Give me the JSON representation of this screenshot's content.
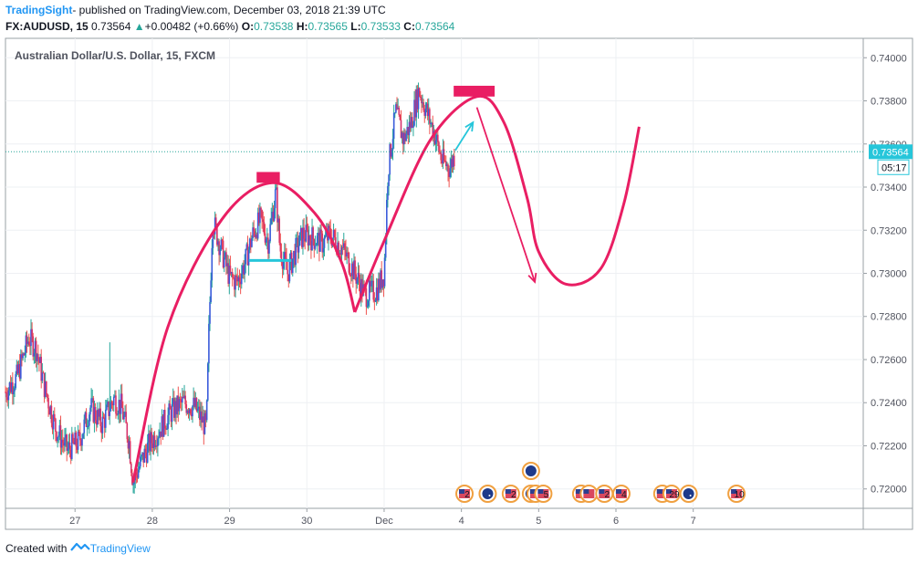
{
  "header": {
    "author": "TradingSight",
    "published": "- published on TradingView.com, December 03, 2018 21:39 UTC",
    "symbol": "FX:AUDUSD, 15",
    "last": "0.73564",
    "change": "+0.00482 (+0.66%)",
    "o_label": "O:",
    "o_value": "0.73538",
    "h_label": "H:",
    "h_value": "0.73565",
    "l_label": "L:",
    "l_value": "0.73533",
    "c_label": "C:",
    "c_value": "0.73564"
  },
  "footer": {
    "created_with": "Created with",
    "brand": "TradingView"
  },
  "chart_data": {
    "type": "line",
    "title": "Australian Dollar/U.S. Dollar, 15, FXCM",
    "x_tick_labels": [
      "27",
      "28",
      "29",
      "30",
      "Dec",
      "4",
      "5",
      "6",
      "7"
    ],
    "x_ticks_day": [
      27.0,
      28.0,
      29.0,
      30.0,
      31.0,
      32.0,
      33.0,
      34.0,
      35.0
    ],
    "y_ticks": [
      0.72,
      0.722,
      0.724,
      0.726,
      0.728,
      0.73,
      0.732,
      0.734,
      0.736,
      0.738,
      0.74
    ],
    "ylim": [
      0.7191,
      0.7409
    ],
    "xlim": [
      26.1,
      37.2
    ],
    "grid": true,
    "last_price": 0.73564,
    "last_price_label": "0.73564",
    "countdown_label": "05:17",
    "price_path": [
      [
        26.1,
        0.7245
      ],
      [
        26.25,
        0.7252
      ],
      [
        26.4,
        0.727
      ],
      [
        26.5,
        0.7265
      ],
      [
        26.6,
        0.7248
      ],
      [
        26.75,
        0.7228
      ],
      [
        26.9,
        0.7218
      ],
      [
        27.05,
        0.7222
      ],
      [
        27.2,
        0.7238
      ],
      [
        27.35,
        0.723
      ],
      [
        27.5,
        0.7242
      ],
      [
        27.6,
        0.7238
      ],
      [
        27.7,
        0.7222
      ],
      [
        27.75,
        0.7203
      ],
      [
        27.85,
        0.7212
      ],
      [
        27.95,
        0.722
      ],
      [
        28.1,
        0.7228
      ],
      [
        28.25,
        0.7236
      ],
      [
        28.4,
        0.724
      ],
      [
        28.55,
        0.7238
      ],
      [
        28.7,
        0.7228
      ],
      [
        28.73,
        0.727
      ],
      [
        28.78,
        0.7325
      ],
      [
        28.9,
        0.731
      ],
      [
        29.0,
        0.7298
      ],
      [
        29.1,
        0.7296
      ],
      [
        29.2,
        0.7305
      ],
      [
        29.3,
        0.7318
      ],
      [
        29.4,
        0.7325
      ],
      [
        29.5,
        0.7315
      ],
      [
        29.6,
        0.7338
      ],
      [
        29.65,
        0.7312
      ],
      [
        29.75,
        0.73
      ],
      [
        29.85,
        0.731
      ],
      [
        29.95,
        0.7318
      ],
      [
        30.1,
        0.7316
      ],
      [
        30.2,
        0.7314
      ],
      [
        30.3,
        0.7318
      ],
      [
        30.45,
        0.7312
      ],
      [
        30.55,
        0.7305
      ],
      [
        30.65,
        0.7298
      ],
      [
        30.75,
        0.729
      ],
      [
        30.9,
        0.7292
      ],
      [
        31.0,
        0.73
      ],
      [
        31.05,
        0.7348
      ],
      [
        31.15,
        0.7375
      ],
      [
        31.25,
        0.7362
      ],
      [
        31.35,
        0.737
      ],
      [
        31.45,
        0.7385
      ],
      [
        31.55,
        0.7375
      ],
      [
        31.65,
        0.7365
      ],
      [
        31.75,
        0.7352
      ],
      [
        31.85,
        0.7349
      ],
      [
        31.92,
        0.7356
      ]
    ],
    "annotations": {
      "big_arc": [
        [
          27.75,
          0.7203
        ],
        [
          28.2,
          0.7275
        ],
        [
          28.9,
          0.7325
        ],
        [
          29.55,
          0.7342
        ],
        [
          30.1,
          0.7328
        ],
        [
          30.45,
          0.7305
        ],
        [
          30.62,
          0.7282
        ]
      ],
      "rise_curve": [
        [
          30.62,
          0.7282
        ],
        [
          31.0,
          0.7315
        ],
        [
          31.6,
          0.7362
        ],
        [
          32.2,
          0.7382
        ],
        [
          32.55,
          0.737
        ],
        [
          32.85,
          0.7335
        ],
        [
          33.0,
          0.731
        ],
        [
          33.35,
          0.7295
        ],
        [
          33.8,
          0.7302
        ],
        [
          34.1,
          0.7332
        ],
        [
          34.3,
          0.7368
        ]
      ],
      "top_box_1": [
        29.35,
        29.65,
        0.7342,
        0.7347
      ],
      "top_box_2": [
        31.9,
        32.43,
        0.7382,
        0.7387
      ],
      "support_line": [
        29.25,
        29.8,
        0.7306
      ],
      "arrow_up": [
        [
          31.92,
          0.7357
        ],
        [
          32.15,
          0.737
        ]
      ],
      "arrow_down": [
        [
          32.2,
          0.7377
        ],
        [
          32.95,
          0.7296
        ]
      ]
    },
    "events": [
      {
        "day": 32.04,
        "label": "2",
        "icon": "usa-flag-icon"
      },
      {
        "day": 32.34,
        "label": "",
        "icon": "aus-flag-icon"
      },
      {
        "day": 32.64,
        "label": "2",
        "icon": "usa-flag-icon"
      },
      {
        "day": 32.9,
        "label": "",
        "icon": "aus-flag-icon"
      },
      {
        "day": 32.96,
        "label": "8",
        "icon": "usa-flag-icon"
      },
      {
        "day": 33.06,
        "label": "5",
        "icon": "usa-flag-icon"
      },
      {
        "day": 33.55,
        "label": "5",
        "icon": "usa-flag-icon"
      },
      {
        "day": 33.65,
        "label": "",
        "icon": "usa-flag-icon"
      },
      {
        "day": 33.85,
        "label": "2",
        "icon": "usa-flag-icon"
      },
      {
        "day": 34.07,
        "label": "4",
        "icon": "usa-flag-icon"
      },
      {
        "day": 34.6,
        "label": "",
        "icon": "usa-flag-icon"
      },
      {
        "day": 34.72,
        "label": "29",
        "icon": "usa-flag-icon"
      },
      {
        "day": 34.94,
        "label": "",
        "icon": "aus-flag-icon"
      },
      {
        "day": 35.56,
        "label": "10",
        "icon": "usa-flag-icon"
      }
    ],
    "colors": {
      "candle_up": "#26a69a",
      "candle_down": "#ef5350",
      "bar_up": "#3b5bdb",
      "bar_down": "#d6336c",
      "drawing": "#e91e63",
      "support": "#26c6da",
      "arrow_up": "#26c6da",
      "grid": "#eef0f3",
      "price_line": "#26a69a",
      "last_price_bg": "#26c6da"
    }
  }
}
